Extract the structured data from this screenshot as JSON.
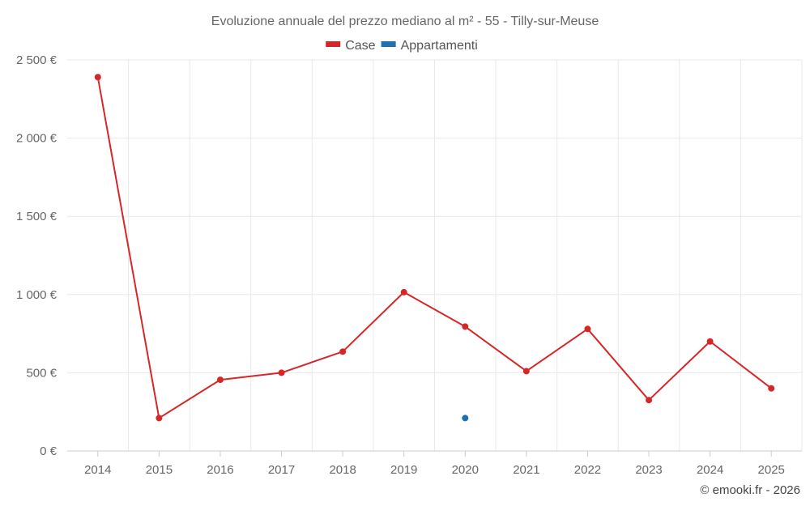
{
  "chart_data": {
    "type": "line",
    "title": "Evoluzione annuale del prezzo mediano al m² - 55 - Tilly-sur-Meuse",
    "categories": [
      "2014",
      "2015",
      "2016",
      "2017",
      "2018",
      "2019",
      "2020",
      "2021",
      "2022",
      "2023",
      "2024",
      "2025"
    ],
    "series": [
      {
        "name": "Case",
        "color": "#d62728",
        "values": [
          2390,
          210,
          455,
          500,
          635,
          1015,
          795,
          510,
          780,
          325,
          700,
          400
        ]
      },
      {
        "name": "Appartamenti",
        "color": "#1f6fb4",
        "values": [
          null,
          null,
          null,
          null,
          null,
          null,
          210,
          null,
          null,
          null,
          null,
          null
        ]
      }
    ],
    "ylim": [
      0,
      2500
    ],
    "yticks": [
      0,
      500,
      1000,
      1500,
      2000,
      2500
    ],
    "ytick_labels": [
      "0 €",
      "500 €",
      "1 000 €",
      "1 500 €",
      "2 000 €",
      "2 500 €"
    ],
    "grid": true,
    "legend": "top-center",
    "xlabel": "",
    "ylabel": ""
  },
  "credit": "© emooki.fr - 2026"
}
